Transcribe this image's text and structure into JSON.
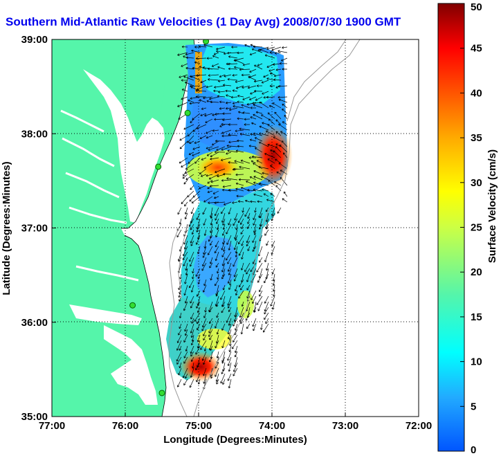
{
  "title": "Southern Mid-Atlantic Raw Velocities (1 Day Avg) 2008/07/30 1900 GMT",
  "map": {
    "x_label": "Longitude (Degrees:Minutes)",
    "y_label": "Latitude (Degrees:Minutes)",
    "x_ticks": [
      "77:00",
      "76:00",
      "75:00",
      "74:00",
      "73:00",
      "72:00"
    ],
    "y_ticks": [
      "39:00",
      "38:00",
      "37:00",
      "36:00",
      "35:00"
    ],
    "lon_range": [
      -77,
      -72
    ],
    "lat_range": [
      35,
      39
    ],
    "land_color": "#55f5aa",
    "gridlines": true,
    "stations": [
      {
        "lon": -74.9,
        "lat": 38.98
      },
      {
        "lon": -75.15,
        "lat": 38.22
      },
      {
        "lon": -75.55,
        "lat": 37.65
      },
      {
        "lon": -75.9,
        "lat": 36.18
      },
      {
        "lon": -75.5,
        "lat": 35.25
      }
    ]
  },
  "colorbar": {
    "label": "Surface Velocity (cm/s)",
    "ticks": [
      "50",
      "45",
      "40",
      "35",
      "30",
      "25",
      "20",
      "15",
      "10",
      "5",
      "0"
    ],
    "range": [
      0,
      50
    ],
    "units": "cm/s"
  }
}
